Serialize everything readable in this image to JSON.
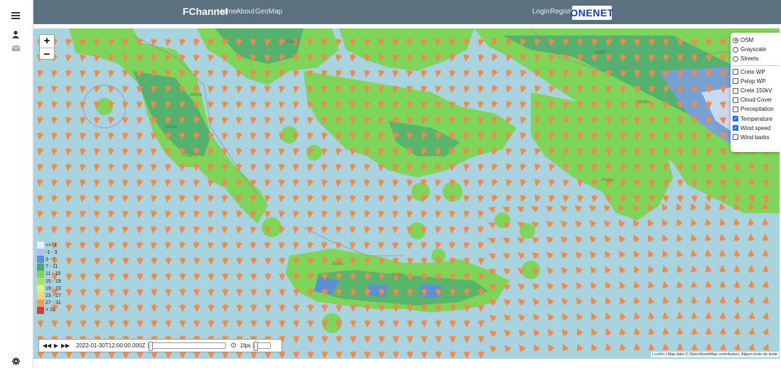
{
  "header": {
    "brand": "FChannel",
    "nav": [
      "Home",
      "About",
      "GeoMap"
    ],
    "login": "Login",
    "register": "Register",
    "logo": "ONENET"
  },
  "sidebar": {
    "icons": [
      "menu-icon",
      "user-icon",
      "mail-icon",
      "gear-icon"
    ]
  },
  "map": {
    "zoom_in": "+",
    "zoom_out": "−",
    "base_layers": [
      {
        "label": "OSM",
        "selected": true
      },
      {
        "label": "Grayscale",
        "selected": false
      },
      {
        "label": "Streets",
        "selected": false
      }
    ],
    "overlays": [
      {
        "label": "Crete WP",
        "checked": false
      },
      {
        "label": "Pelop WP",
        "checked": false
      },
      {
        "label": "Crete 150kV",
        "checked": false
      },
      {
        "label": "Cloud Cover",
        "checked": false
      },
      {
        "label": "Precepitation",
        "checked": false
      },
      {
        "label": "Temperature",
        "checked": true
      },
      {
        "label": "Wind speed",
        "checked": true
      },
      {
        "label": "Wind barbs",
        "checked": false
      }
    ],
    "legend": [
      {
        "label": "<= -1",
        "color": "#e8f1fb"
      },
      {
        "label": "-1 - 3",
        "color": "#a9c4ea"
      },
      {
        "label": "3 - 7",
        "color": "#5b8fd6"
      },
      {
        "label": "7 - 11",
        "color": "#4aa874"
      },
      {
        "label": "11 - 15",
        "color": "#7fd45a"
      },
      {
        "label": "15 - 19",
        "color": "#a9e45a"
      },
      {
        "label": "19 - 23",
        "color": "#e4ef8a"
      },
      {
        "label": "23 - 27",
        "color": "#f2d27a"
      },
      {
        "label": "27 - 31",
        "color": "#ef9a5a"
      },
      {
        "label": "> 31",
        "color": "#d93a3a"
      }
    ],
    "player": {
      "rewind": "◀◀",
      "play": "▶",
      "forward": "▶▶",
      "time": "2022-01-30T12:00:00.000Z",
      "clock": "⊙",
      "fps": "1fps"
    },
    "attribution": {
      "leaflet": "Leaflet",
      "text": " | Map data © OpenStreetMap contributors, Algum texto de teste"
    },
    "colors": {
      "sea": "#a9d3df",
      "land_green": "#7fd45a",
      "land_teal": "#4aa874",
      "cold_blue": "#5b8fd6",
      "wind_arrow": "#f0894a"
    }
  }
}
